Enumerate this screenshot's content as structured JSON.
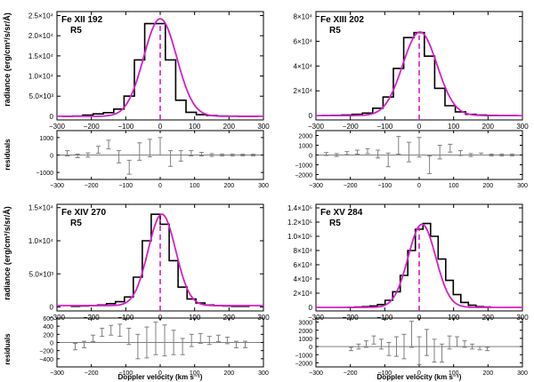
{
  "figure": {
    "ylabel_main": "radiance (erg/cm²/s/sr/Å)",
    "ylabel_resid": "residuals",
    "xlabel": "Doppler velocity (km s⁻¹)"
  },
  "chart_data": [
    {
      "type": "line",
      "title": "Fe XII 192",
      "subtitle": "R5",
      "xlabel": "Doppler velocity (km s⁻¹)",
      "ylabel": "radiance (erg/cm²/s/sr/Å)",
      "xlim": [
        -300,
        300
      ],
      "xticks": [
        -300,
        -200,
        -100,
        0,
        100,
        200,
        300
      ],
      "ylim": [
        -900,
        26000
      ],
      "yticks": [
        {
          "v": 0,
          "t": "0"
        },
        {
          "v": 5000,
          "t": "5.0×10³"
        },
        {
          "v": 10000,
          "t": "1.0×10⁴"
        },
        {
          "v": 15000,
          "t": "1.5×10⁴"
        },
        {
          "v": 20000,
          "t": "2.0×10⁴"
        },
        {
          "v": 25000,
          "t": "2.5×10⁴"
        }
      ],
      "bin_width": 30,
      "bins_x": [
        -270,
        -240,
        -210,
        -180,
        -150,
        -120,
        -90,
        -60,
        -30,
        0,
        30,
        60,
        90,
        120,
        150,
        180,
        210,
        240,
        270
      ],
      "observed": [
        0,
        100,
        300,
        600,
        900,
        1800,
        5000,
        14000,
        23000,
        23000,
        14000,
        4000,
        1000,
        400,
        200,
        100,
        50,
        0,
        0
      ],
      "fit": {
        "amplitude": 24200,
        "center": 0,
        "sigma": 48,
        "background": 0
      },
      "centroid": 0,
      "residuals": {
        "ylim": [
          -1400,
          1400
        ],
        "yticks": [
          {
            "v": -1000,
            "t": "−1000"
          },
          {
            "v": 0,
            "t": "0"
          },
          {
            "v": 1000,
            "t": "1000"
          }
        ],
        "x": [
          -270,
          -240,
          -210,
          -180,
          -150,
          -120,
          -90,
          -60,
          -30,
          0,
          30,
          60,
          90,
          120,
          150,
          180,
          210,
          240,
          270
        ],
        "values": [
          100,
          -50,
          0,
          300,
          600,
          -100,
          -700,
          200,
          400,
          500,
          -200,
          -50,
          100,
          50,
          0,
          0,
          0,
          0,
          0
        ],
        "errors": [
          150,
          100,
          120,
          200,
          250,
          350,
          400,
          500,
          500,
          500,
          450,
          300,
          150,
          100,
          80,
          60,
          60,
          50,
          50
        ]
      }
    },
    {
      "type": "line",
      "title": "Fe XIII 202",
      "subtitle": "R5",
      "xlabel": "Doppler velocity (km s⁻¹)",
      "ylabel": "radiance (erg/cm²/s/sr/Å)",
      "xlim": [
        -300,
        300
      ],
      "xticks": [
        -300,
        -200,
        -100,
        0,
        100,
        200,
        300
      ],
      "ylim": [
        -3500,
        84000
      ],
      "yticks": [
        {
          "v": 0,
          "t": "0"
        },
        {
          "v": 20000,
          "t": "2×10⁴"
        },
        {
          "v": 40000,
          "t": "4×10⁴"
        },
        {
          "v": 60000,
          "t": "6×10⁴"
        },
        {
          "v": 80000,
          "t": "8×10⁴"
        }
      ],
      "bin_width": 30,
      "bins_x": [
        -270,
        -240,
        -210,
        -180,
        -150,
        -120,
        -90,
        -60,
        -30,
        0,
        30,
        60,
        90,
        120,
        150,
        180,
        210,
        240,
        270
      ],
      "observed": [
        0,
        200,
        500,
        1000,
        2000,
        6000,
        15000,
        38000,
        63000,
        67000,
        48000,
        22000,
        8000,
        3000,
        1000,
        500,
        200,
        0,
        0
      ],
      "fit": {
        "amplitude": 67500,
        "center": 2,
        "sigma": 50,
        "background": 0
      },
      "centroid": 0,
      "residuals": {
        "ylim": [
          -2500,
          2500
        ],
        "yticks": [
          {
            "v": -2000,
            "t": "−2000"
          },
          {
            "v": -1000,
            "t": "−1000"
          },
          {
            "v": 0,
            "t": "0"
          },
          {
            "v": 1000,
            "t": "1000"
          },
          {
            "v": 2000,
            "t": "2000"
          }
        ],
        "x": [
          -270,
          -240,
          -210,
          -180,
          -150,
          -120,
          -90,
          -60,
          -30,
          0,
          30,
          60,
          90,
          120,
          150,
          180,
          210,
          240,
          270
        ],
        "values": [
          100,
          0,
          200,
          300,
          400,
          100,
          -500,
          1000,
          300,
          800,
          -1000,
          300,
          700,
          200,
          0,
          100,
          0,
          0,
          0
        ],
        "errors": [
          150,
          150,
          150,
          200,
          250,
          400,
          700,
          900,
          1000,
          1000,
          900,
          700,
          400,
          250,
          150,
          100,
          100,
          100,
          100
        ]
      }
    },
    {
      "type": "line",
      "title": "Fe XIV 270",
      "subtitle": "R5",
      "xlabel": "Doppler velocity (km s⁻¹)",
      "ylabel": "radiance (erg/cm²/s/sr/Å)",
      "xlim": [
        -300,
        300
      ],
      "xticks": [
        -300,
        -200,
        -100,
        0,
        100,
        200,
        300
      ],
      "ylim": [
        -600,
        15500
      ],
      "yticks": [
        {
          "v": 0,
          "t": "0"
        },
        {
          "v": 5000,
          "t": "5.0×10³"
        },
        {
          "v": 10000,
          "t": "1.0×10⁴"
        },
        {
          "v": 15000,
          "t": "1.5×10⁴"
        }
      ],
      "bin_width": 26,
      "bins_x": [
        -247,
        -221,
        -195,
        -169,
        -143,
        -117,
        -91,
        -65,
        -39,
        -13,
        13,
        39,
        65,
        91,
        117,
        143,
        169,
        195,
        221,
        247
      ],
      "observed": [
        100,
        150,
        200,
        300,
        500,
        800,
        1500,
        4500,
        10000,
        14000,
        12500,
        7000,
        3000,
        1200,
        600,
        300,
        200,
        150,
        100,
        100
      ],
      "fit": {
        "amplitude": 13800,
        "center": 5,
        "sigma": 40,
        "background": 200
      },
      "centroid": 0,
      "residuals": {
        "ylim": [
          -600,
          600
        ],
        "yticks": [
          {
            "v": -400,
            "t": "−400"
          },
          {
            "v": -200,
            "t": "−200"
          },
          {
            "v": 0,
            "t": "0"
          },
          {
            "v": 200,
            "t": "200"
          },
          {
            "v": 400,
            "t": "400"
          },
          {
            "v": 600,
            "t": "600"
          }
        ],
        "x": [
          -247,
          -221,
          -195,
          -169,
          -143,
          -117,
          -91,
          -65,
          -39,
          -13,
          13,
          39,
          65,
          91,
          117,
          143,
          169,
          195,
          221,
          247
        ],
        "values": [
          -100,
          -50,
          100,
          250,
          300,
          300,
          150,
          -100,
          0,
          100,
          50,
          0,
          -100,
          50,
          100,
          50,
          100,
          50,
          -50,
          -50
        ],
        "errors": [
          80,
          80,
          80,
          100,
          120,
          150,
          200,
          300,
          380,
          400,
          380,
          300,
          200,
          150,
          120,
          100,
          80,
          80,
          80,
          80
        ]
      }
    },
    {
      "type": "line",
      "title": "Fe XV 284",
      "subtitle": "R5",
      "xlabel": "Doppler velocity (km s⁻¹)",
      "ylabel": "radiance (erg/cm²/s/sr/Å)",
      "xlim": [
        -300,
        300
      ],
      "xticks": [
        -300,
        -200,
        -100,
        0,
        100,
        200,
        300
      ],
      "ylim": [
        -5000,
        145000
      ],
      "yticks": [
        {
          "v": 0,
          "t": "0"
        },
        {
          "v": 20000,
          "t": "2×10⁴"
        },
        {
          "v": 40000,
          "t": "4×10⁴"
        },
        {
          "v": 60000,
          "t": "6×10⁴"
        },
        {
          "v": 80000,
          "t": "8×10⁴"
        },
        {
          "v": 100000,
          "t": "1.0×10⁵"
        },
        {
          "v": 120000,
          "t": "1.2×10⁵"
        },
        {
          "v": 140000,
          "t": "1.4×10⁵"
        }
      ],
      "bin_width": 22,
      "bins_x": [
        -198,
        -176,
        -154,
        -132,
        -110,
        -88,
        -66,
        -44,
        -22,
        0,
        22,
        44,
        66,
        88,
        110,
        132,
        154,
        176,
        198
      ],
      "observed": [
        0,
        500,
        1000,
        2000,
        4000,
        10000,
        22000,
        45000,
        80000,
        110000,
        118000,
        100000,
        68000,
        38000,
        18000,
        7000,
        3000,
        1000,
        500
      ],
      "fit": {
        "amplitude": 117000,
        "center": 8,
        "sigma": 40,
        "background": 0
      },
      "centroid": 0,
      "residuals": {
        "ylim": [
          -2500,
          3500
        ],
        "yticks": [
          {
            "v": -2000,
            "t": "−2000"
          },
          {
            "v": -1000,
            "t": "−1000"
          },
          {
            "v": 0,
            "t": "0"
          },
          {
            "v": 1000,
            "t": "1000"
          },
          {
            "v": 2000,
            "t": "2000"
          },
          {
            "v": 3000,
            "t": "3000"
          }
        ],
        "x": [
          -198,
          -176,
          -154,
          -132,
          -110,
          -88,
          -66,
          -44,
          -22,
          0,
          22,
          44,
          66,
          88,
          110,
          132,
          154,
          176,
          198
        ],
        "values": [
          -300,
          0,
          300,
          800,
          300,
          -300,
          0,
          0,
          1500,
          -500,
          500,
          -500,
          -800,
          500,
          600,
          300,
          0,
          -200,
          -300
        ],
        "errors": [
          200,
          300,
          400,
          500,
          600,
          800,
          1200,
          1500,
          1600,
          1700,
          1600,
          1400,
          1100,
          800,
          600,
          400,
          300,
          200,
          200
        ]
      }
    }
  ]
}
